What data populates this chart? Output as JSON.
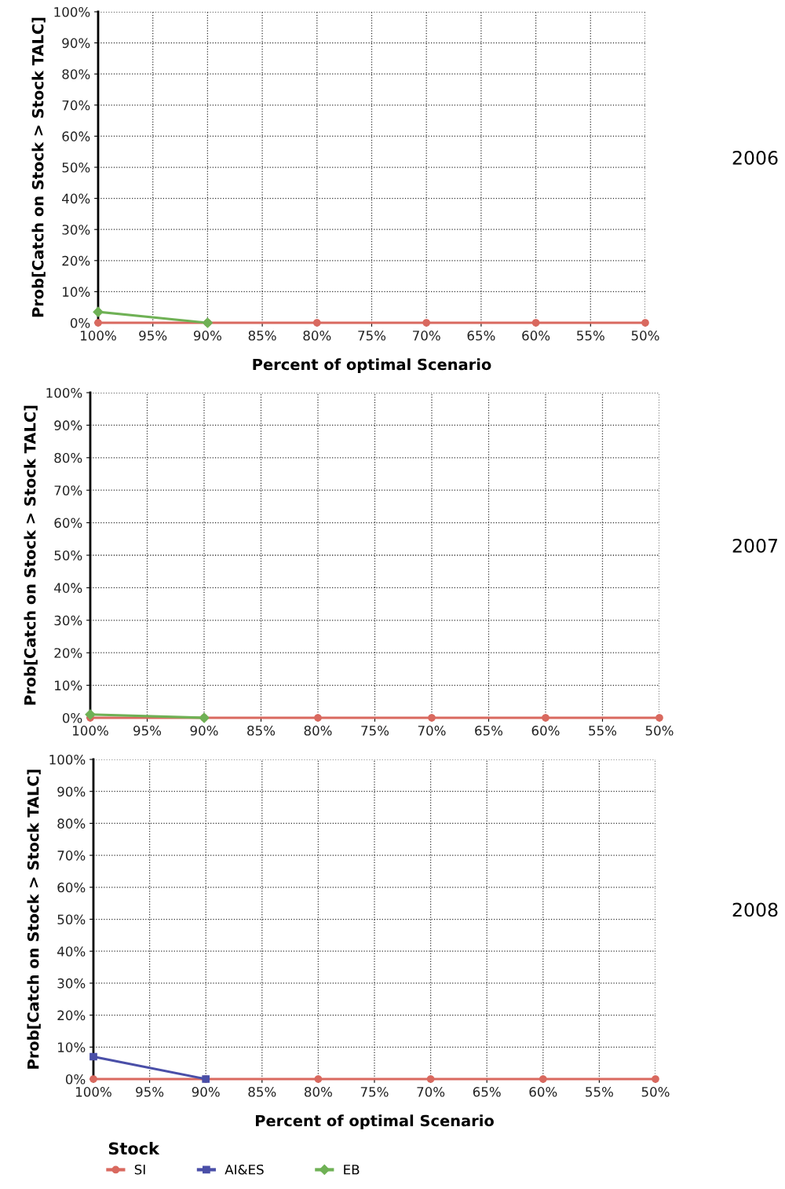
{
  "chart_data": [
    {
      "type": "line",
      "ylabel": "Prob[Catch on Stock > Stock TALC]",
      "xlabel": "Percent of optimal Scenario",
      "annotations": [
        "2006"
      ],
      "x": [
        100,
        90,
        80,
        70,
        60,
        50
      ],
      "series": [
        {
          "color": "#d9695f",
          "marker": "circle",
          "values": [
            0,
            0,
            0,
            0,
            0,
            0
          ]
        },
        {
          "color": "#6fb155",
          "marker": "diamond",
          "values": [
            3.5,
            0,
            null,
            null,
            null,
            null
          ]
        }
      ],
      "xlim": [
        100,
        50
      ],
      "xticks": [
        {
          "value": 100,
          "label": "100%"
        },
        {
          "value": 95,
          "label": "95%"
        },
        {
          "value": 90,
          "label": "90%"
        },
        {
          "value": 85,
          "label": "85%"
        },
        {
          "value": 80,
          "label": "80%"
        },
        {
          "value": 75,
          "label": "75%"
        },
        {
          "value": 70,
          "label": "70%"
        },
        {
          "value": 65,
          "label": "65%"
        },
        {
          "value": 60,
          "label": "60%"
        },
        {
          "value": 55,
          "label": "55%"
        },
        {
          "value": 50,
          "label": "50%"
        }
      ],
      "ylim": [
        0,
        100
      ],
      "yticks": [
        {
          "value": 0,
          "label": "0%"
        },
        {
          "value": 10,
          "label": "10%"
        },
        {
          "value": 20,
          "label": "20%"
        },
        {
          "value": 30,
          "label": "30%"
        },
        {
          "value": 40,
          "label": "40%"
        },
        {
          "value": 50,
          "label": "50%"
        },
        {
          "value": 60,
          "label": "60%"
        },
        {
          "value": 70,
          "label": "70%"
        },
        {
          "value": 80,
          "label": "80%"
        },
        {
          "value": 90,
          "label": "90%"
        },
        {
          "value": 100,
          "label": "100%"
        }
      ],
      "grid": true,
      "line_style": "solid"
    },
    {
      "type": "line",
      "ylabel": "Prob[Catch on Stock > Stock TALC]",
      "annotations": [
        "2007"
      ],
      "x": [
        100,
        90,
        80,
        70,
        60,
        50
      ],
      "series": [
        {
          "color": "#d9695f",
          "marker": "circle",
          "values": [
            0,
            0,
            0,
            0,
            0,
            0
          ]
        },
        {
          "color": "#6fb155",
          "marker": "diamond",
          "values": [
            1,
            0,
            null,
            null,
            null,
            null
          ]
        }
      ],
      "xlim": [
        100,
        50
      ],
      "xticks": [
        {
          "value": 100,
          "label": "100%"
        },
        {
          "value": 95,
          "label": "95%"
        },
        {
          "value": 90,
          "label": "90%"
        },
        {
          "value": 85,
          "label": "85%"
        },
        {
          "value": 80,
          "label": "80%"
        },
        {
          "value": 75,
          "label": "75%"
        },
        {
          "value": 70,
          "label": "70%"
        },
        {
          "value": 65,
          "label": "65%"
        },
        {
          "value": 60,
          "label": "60%"
        },
        {
          "value": 55,
          "label": "55%"
        },
        {
          "value": 50,
          "label": "50%"
        }
      ],
      "ylim": [
        0,
        100
      ],
      "yticks": [
        {
          "value": 0,
          "label": "0%"
        },
        {
          "value": 10,
          "label": "10%"
        },
        {
          "value": 20,
          "label": "20%"
        },
        {
          "value": 30,
          "label": "30%"
        },
        {
          "value": 40,
          "label": "40%"
        },
        {
          "value": 50,
          "label": "50%"
        },
        {
          "value": 60,
          "label": "60%"
        },
        {
          "value": 70,
          "label": "70%"
        },
        {
          "value": 80,
          "label": "80%"
        },
        {
          "value": 90,
          "label": "90%"
        },
        {
          "value": 100,
          "label": "100%"
        }
      ],
      "grid": true,
      "line_style": "solid"
    },
    {
      "type": "line",
      "ylabel": "Prob[Catch on Stock > Stock TALC]",
      "xlabel": "Percent of optimal Scenario",
      "annotations": [
        "2008"
      ],
      "legend": "bottom",
      "legend_title": "Stock",
      "x": [
        100,
        90,
        80,
        70,
        60,
        50
      ],
      "series": [
        {
          "name": "SI",
          "color": "#d9695f",
          "marker": "circle",
          "values": [
            0,
            0,
            0,
            0,
            0,
            0
          ]
        },
        {
          "name": "AI&ES",
          "color": "#4a4fa8",
          "marker": "square",
          "values": [
            7,
            0,
            null,
            null,
            null,
            null
          ]
        },
        {
          "name": "EB",
          "color": "#6fb155",
          "marker": "diamond",
          "values": [
            null,
            null,
            null,
            null,
            null,
            null
          ]
        }
      ],
      "xlim": [
        100,
        50
      ],
      "xticks": [
        {
          "value": 100,
          "label": "100%"
        },
        {
          "value": 95,
          "label": "95%"
        },
        {
          "value": 90,
          "label": "90%"
        },
        {
          "value": 85,
          "label": "85%"
        },
        {
          "value": 80,
          "label": "80%"
        },
        {
          "value": 75,
          "label": "75%"
        },
        {
          "value": 70,
          "label": "70%"
        },
        {
          "value": 65,
          "label": "65%"
        },
        {
          "value": 60,
          "label": "60%"
        },
        {
          "value": 55,
          "label": "55%"
        },
        {
          "value": 50,
          "label": "50%"
        }
      ],
      "ylim": [
        0,
        100
      ],
      "yticks": [
        {
          "value": 0,
          "label": "0%"
        },
        {
          "value": 10,
          "label": "10%"
        },
        {
          "value": 20,
          "label": "20%"
        },
        {
          "value": 30,
          "label": "30%"
        },
        {
          "value": 40,
          "label": "40%"
        },
        {
          "value": 50,
          "label": "50%"
        },
        {
          "value": 60,
          "label": "60%"
        },
        {
          "value": 70,
          "label": "70%"
        },
        {
          "value": 80,
          "label": "80%"
        },
        {
          "value": 90,
          "label": "90%"
        },
        {
          "value": 100,
          "label": "100%"
        }
      ],
      "grid": true,
      "line_style": "solid"
    }
  ]
}
